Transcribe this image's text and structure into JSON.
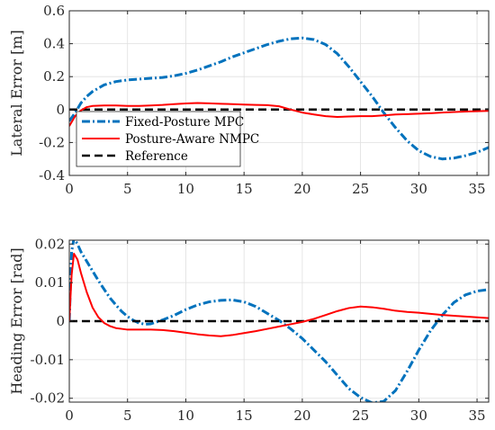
{
  "chart_data": [
    {
      "type": "line",
      "ylabel": "Lateral Error [m]",
      "xlabel": "",
      "xlim": [
        0,
        36
      ],
      "ylim": [
        -0.4,
        0.6
      ],
      "xticks": [
        "0",
        "5",
        "10",
        "15",
        "20",
        "25",
        "30",
        "35"
      ],
      "yticks": [
        "-0.4",
        "-0.2",
        "0",
        "0.2",
        "0.4",
        "0.6"
      ],
      "grid": true,
      "legend_position": "bottom-left",
      "series": [
        {
          "name": "Fixed-Posture MPC",
          "color": "#0072BD",
          "style": "dash-dot",
          "x": [
            0,
            0.5,
            1,
            1.5,
            2,
            3,
            4,
            5,
            6,
            7,
            8,
            9,
            10,
            11,
            12,
            13,
            14,
            15,
            16,
            17,
            18,
            19,
            20,
            21,
            22,
            23,
            24,
            25,
            26,
            27,
            28,
            29,
            30,
            31,
            32,
            33,
            34,
            35,
            36
          ],
          "values": [
            -0.07,
            -0.02,
            0.04,
            0.08,
            0.11,
            0.15,
            0.17,
            0.18,
            0.185,
            0.19,
            0.195,
            0.205,
            0.22,
            0.24,
            0.265,
            0.29,
            0.32,
            0.345,
            0.37,
            0.395,
            0.415,
            0.43,
            0.435,
            0.425,
            0.395,
            0.34,
            0.26,
            0.17,
            0.08,
            -0.02,
            -0.11,
            -0.19,
            -0.25,
            -0.285,
            -0.3,
            -0.295,
            -0.28,
            -0.26,
            -0.23
          ]
        },
        {
          "name": "Posture-Aware NMPC",
          "color": "#FF0000",
          "style": "solid",
          "x": [
            0,
            0.5,
            1,
            1.5,
            2,
            3,
            4,
            5,
            6,
            7,
            8,
            9,
            10,
            11,
            12,
            13,
            14,
            15,
            16,
            17,
            18,
            19,
            20,
            21,
            22,
            23,
            24,
            25,
            26,
            27,
            28,
            29,
            30,
            31,
            32,
            33,
            34,
            35,
            36
          ],
          "values": [
            -0.1,
            -0.04,
            -0.005,
            0.015,
            0.022,
            0.025,
            0.025,
            0.022,
            0.022,
            0.025,
            0.028,
            0.033,
            0.037,
            0.04,
            0.038,
            0.035,
            0.033,
            0.03,
            0.028,
            0.027,
            0.02,
            0.0,
            -0.018,
            -0.03,
            -0.04,
            -0.045,
            -0.042,
            -0.04,
            -0.04,
            -0.035,
            -0.03,
            -0.028,
            -0.025,
            -0.022,
            -0.018,
            -0.015,
            -0.012,
            -0.01,
            -0.008
          ]
        },
        {
          "name": "Reference",
          "color": "#000000",
          "style": "dashed",
          "x": [
            0,
            36
          ],
          "values": [
            0,
            0
          ]
        }
      ]
    },
    {
      "type": "line",
      "ylabel": "Heading Error [rad]",
      "xlabel": "",
      "xlim": [
        0,
        36
      ],
      "ylim": [
        -0.021,
        0.021
      ],
      "xticks": [
        "0",
        "5",
        "10",
        "15",
        "20",
        "25",
        "30",
        "35"
      ],
      "yticks": [
        "-0.02",
        "-0.01",
        "0",
        "0.01",
        "0.02"
      ],
      "grid": true,
      "series": [
        {
          "name": "Fixed-Posture MPC",
          "color": "#0072BD",
          "style": "dash-dot",
          "x": [
            0,
            0.2,
            0.4,
            0.7,
            1,
            1.5,
            2,
            2.5,
            3,
            3.5,
            4,
            4.5,
            5,
            5.5,
            6,
            6.5,
            7,
            8,
            9,
            10,
            11,
            12,
            13,
            14,
            15,
            16,
            17,
            18,
            19,
            20,
            21,
            22,
            23,
            24,
            25,
            26,
            27,
            28,
            29,
            30,
            31,
            32,
            33,
            34,
            35,
            36
          ],
          "values": [
            0.0,
            0.018,
            0.0215,
            0.02,
            0.018,
            0.0155,
            0.013,
            0.0105,
            0.0082,
            0.006,
            0.0042,
            0.0025,
            0.0012,
            0.0002,
            -0.0005,
            -0.0008,
            -0.0007,
            0.0003,
            0.0015,
            0.003,
            0.0042,
            0.005,
            0.0054,
            0.0055,
            0.005,
            0.0038,
            0.002,
            0.0002,
            -0.002,
            -0.0045,
            -0.0075,
            -0.0105,
            -0.014,
            -0.0175,
            -0.0198,
            -0.0212,
            -0.0208,
            -0.018,
            -0.013,
            -0.0075,
            -0.0025,
            0.0015,
            0.0048,
            0.0068,
            0.0078,
            0.0082
          ]
        },
        {
          "name": "Posture-Aware NMPC",
          "color": "#FF0000",
          "style": "solid",
          "x": [
            0,
            0.2,
            0.4,
            0.7,
            1,
            1.5,
            2,
            2.5,
            3,
            3.5,
            4,
            4.5,
            5,
            6,
            7,
            8,
            9,
            10,
            11,
            12,
            13,
            14,
            15,
            16,
            17,
            18,
            19,
            20,
            21,
            22,
            23,
            24,
            25,
            26,
            27,
            28,
            29,
            30,
            31,
            32,
            33,
            34,
            35,
            36
          ],
          "values": [
            0.0,
            0.012,
            0.0175,
            0.016,
            0.0125,
            0.0075,
            0.0035,
            0.001,
            -0.0005,
            -0.0013,
            -0.0018,
            -0.002,
            -0.0022,
            -0.0022,
            -0.0022,
            -0.0023,
            -0.0026,
            -0.003,
            -0.0034,
            -0.0037,
            -0.0039,
            -0.0036,
            -0.0031,
            -0.0026,
            -0.002,
            -0.0014,
            -0.0008,
            -0.0002,
            0.0006,
            0.0016,
            0.0026,
            0.0034,
            0.0038,
            0.0036,
            0.0032,
            0.0027,
            0.0024,
            0.0022,
            0.0019,
            0.0016,
            0.0014,
            0.0012,
            0.001,
            0.0008
          ]
        },
        {
          "name": "Reference",
          "color": "#000000",
          "style": "dashed",
          "x": [
            0,
            36
          ],
          "values": [
            0,
            0
          ]
        }
      ]
    }
  ]
}
